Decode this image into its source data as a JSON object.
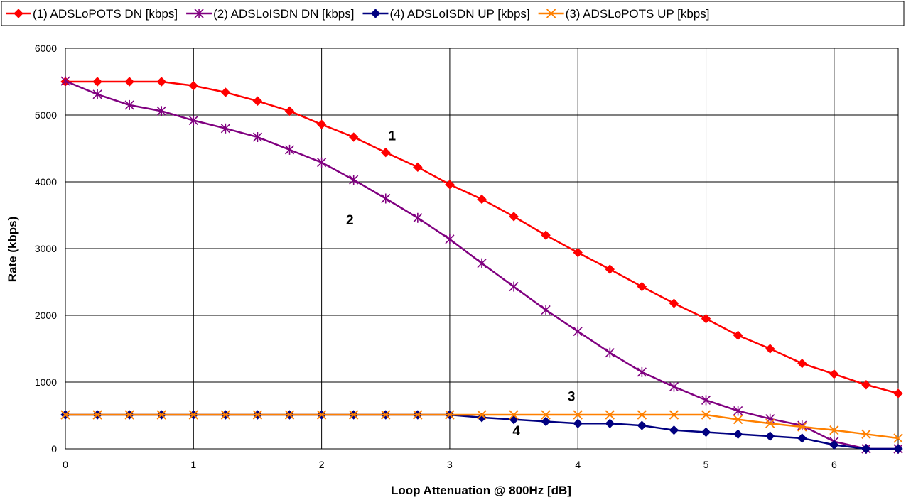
{
  "chart_data": {
    "type": "line",
    "xlabel": "Loop Attenuation @ 800Hz [dB]",
    "ylabel": "Rate (kbps)",
    "xlim": [
      0,
      6.5
    ],
    "ylim": [
      0,
      6000
    ],
    "x_ticks": [
      0,
      1,
      2,
      3,
      4,
      5,
      6
    ],
    "y_ticks": [
      0,
      1000,
      2000,
      3000,
      4000,
      5000,
      6000
    ],
    "grid": true,
    "legend_position": "top",
    "x": [
      0,
      0.25,
      0.5,
      0.75,
      1,
      1.25,
      1.5,
      1.75,
      2,
      2.25,
      2.5,
      2.75,
      3,
      3.25,
      3.5,
      3.75,
      4,
      4.25,
      4.5,
      4.75,
      5,
      5.25,
      5.5,
      5.75,
      6,
      6.25,
      6.5
    ],
    "series": [
      {
        "name": "(1) ADSLoPOTS DN [kbps]",
        "color": "#ff0000",
        "marker": "diamond",
        "values": [
          5500,
          5500,
          5500,
          5500,
          5440,
          5340,
          5210,
          5060,
          4860,
          4670,
          4440,
          4220,
          3960,
          3740,
          3480,
          3200,
          2940,
          2690,
          2430,
          2180,
          1950,
          1700,
          1500,
          1280,
          1120,
          960,
          830
        ]
      },
      {
        "name": "(2) ADSLoISDN DN [kbps]",
        "color": "#800080",
        "marker": "star",
        "values": [
          5510,
          5310,
          5150,
          5060,
          4920,
          4800,
          4670,
          4480,
          4290,
          4030,
          3750,
          3460,
          3140,
          2780,
          2430,
          2080,
          1760,
          1440,
          1150,
          930,
          730,
          570,
          450,
          350,
          110,
          0,
          0
        ]
      },
      {
        "name": "(4) ADSLoISDN UP [kbps]",
        "color": "#000080",
        "marker": "diamond",
        "values": [
          510,
          510,
          510,
          510,
          510,
          510,
          510,
          510,
          510,
          510,
          510,
          510,
          510,
          470,
          440,
          410,
          380,
          380,
          350,
          280,
          250,
          220,
          190,
          160,
          60,
          0,
          0
        ]
      },
      {
        "name": "(3) ADSLoPOTS UP [kbps]",
        "color": "#ff8000",
        "marker": "x",
        "values": [
          510,
          510,
          510,
          510,
          510,
          510,
          510,
          510,
          510,
          510,
          510,
          510,
          510,
          510,
          510,
          510,
          510,
          510,
          510,
          510,
          510,
          440,
          380,
          330,
          280,
          220,
          160
        ]
      }
    ],
    "annotations": [
      {
        "text": "1",
        "x": 2.55,
        "y": 4620
      },
      {
        "text": "2",
        "x": 2.22,
        "y": 3360
      },
      {
        "text": "3",
        "x": 3.95,
        "y": 720
      },
      {
        "text": "4",
        "x": 3.52,
        "y": 200
      }
    ]
  }
}
